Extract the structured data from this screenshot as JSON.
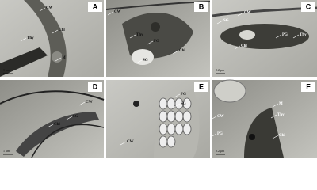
{
  "panels": [
    {
      "label": "A",
      "annotations": [
        "CW",
        "Chl",
        "Thy",
        "M"
      ],
      "scale_bar": "1 μm"
    },
    {
      "label": "B",
      "annotations": [
        "CW",
        "Thy",
        "PG",
        "Chl",
        "SG"
      ]
    },
    {
      "label": "C",
      "annotations": [
        "CW",
        "SG",
        "PG",
        "Thy",
        "Chl"
      ],
      "scale_bar": "0.2 μm"
    },
    {
      "label": "D",
      "annotations": [
        "CW",
        "SG",
        "Chl"
      ],
      "scale_bar": "1 μm"
    },
    {
      "label": "E",
      "annotations": [
        "PG",
        "SG",
        "CW"
      ]
    },
    {
      "label": "F",
      "annotations": [
        "M",
        "CW",
        "Thy",
        "PG",
        "Chl"
      ],
      "scale_bar": "0.2 μm"
    }
  ]
}
